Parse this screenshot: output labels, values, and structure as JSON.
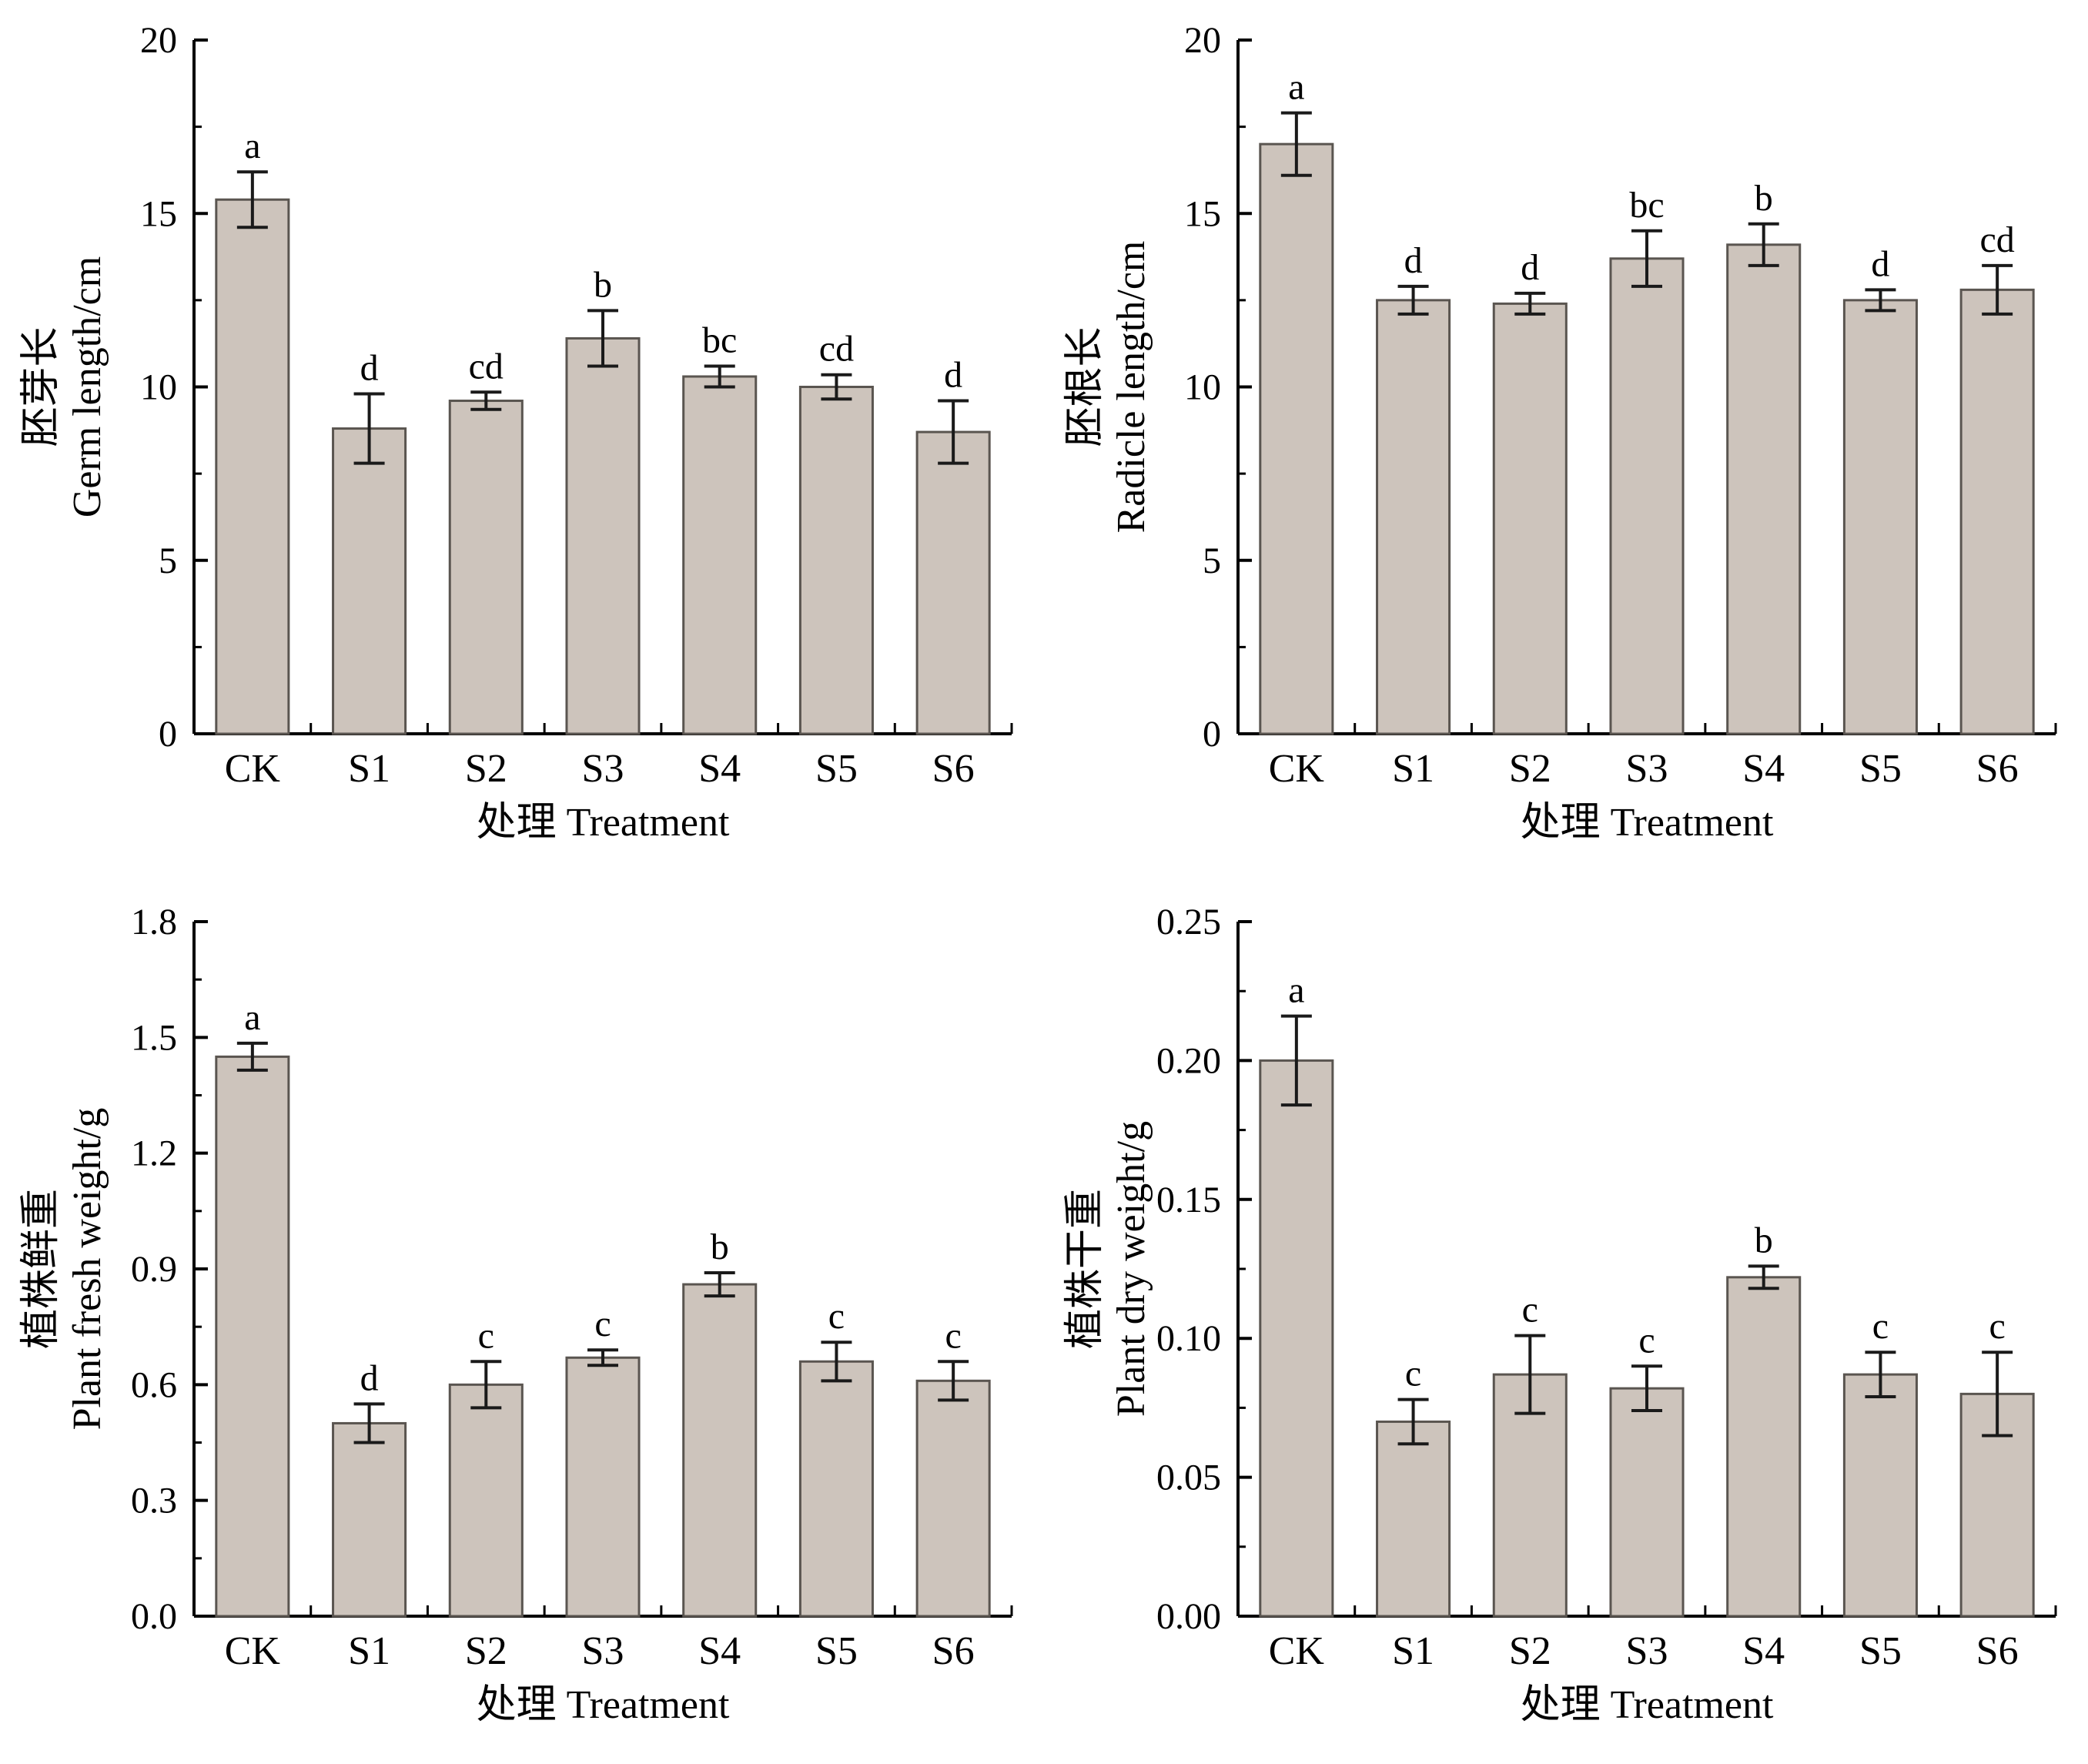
{
  "style": {
    "bar_fill": "#cdc4bc",
    "bar_stroke": "#5a5550",
    "axis_color": "#000000",
    "error_color": "#1a1a1a",
    "text_color": "#000000"
  },
  "chart_data": [
    {
      "type": "bar",
      "id": "germ-length",
      "ylabel_zh": "胚芽长",
      "ylabel_en": "Germ length/cm",
      "xlabel": "处理  Treatment",
      "categories": [
        "CK",
        "S1",
        "S2",
        "S3",
        "S4",
        "S5",
        "S6"
      ],
      "values": [
        15.4,
        8.8,
        9.6,
        11.4,
        10.3,
        10.0,
        8.7
      ],
      "errors": [
        0.8,
        1.0,
        0.25,
        0.8,
        0.3,
        0.35,
        0.9
      ],
      "letters": [
        "a",
        "d",
        "cd",
        "b",
        "bc",
        "cd",
        "d"
      ],
      "ylim": [
        0,
        20
      ],
      "yticks": [
        0,
        5,
        10,
        15,
        20
      ],
      "ytick_labels": [
        "0",
        "5",
        "10",
        "15",
        "20"
      ],
      "grid": false,
      "legend": "none"
    },
    {
      "type": "bar",
      "id": "radicle-length",
      "ylabel_zh": "胚根长",
      "ylabel_en": "Radicle length/cm",
      "xlabel": "处理  Treatment",
      "categories": [
        "CK",
        "S1",
        "S2",
        "S3",
        "S4",
        "S5",
        "S6"
      ],
      "values": [
        17.0,
        12.5,
        12.4,
        13.7,
        14.1,
        12.5,
        12.8
      ],
      "errors": [
        0.9,
        0.4,
        0.3,
        0.8,
        0.6,
        0.3,
        0.7
      ],
      "letters": [
        "a",
        "d",
        "d",
        "bc",
        "b",
        "d",
        "cd"
      ],
      "ylim": [
        0,
        20
      ],
      "yticks": [
        0,
        5,
        10,
        15,
        20
      ],
      "ytick_labels": [
        "0",
        "5",
        "10",
        "15",
        "20"
      ],
      "grid": false,
      "legend": "none"
    },
    {
      "type": "bar",
      "id": "plant-fresh-weight",
      "ylabel_zh": "植株鲜重",
      "ylabel_en": "Plant fresh weight/g",
      "xlabel": "处理  Treatment",
      "categories": [
        "CK",
        "S1",
        "S2",
        "S3",
        "S4",
        "S5",
        "S6"
      ],
      "values": [
        1.45,
        0.5,
        0.6,
        0.67,
        0.86,
        0.66,
        0.61
      ],
      "errors": [
        0.035,
        0.05,
        0.06,
        0.02,
        0.03,
        0.05,
        0.05
      ],
      "letters": [
        "a",
        "d",
        "c",
        "c",
        "b",
        "c",
        "c"
      ],
      "ylim": [
        0,
        1.8
      ],
      "yticks": [
        0,
        0.3,
        0.6,
        0.9,
        1.2,
        1.5,
        1.8
      ],
      "ytick_labels": [
        "0.0",
        "0.3",
        "0.6",
        "0.9",
        "1.2",
        "1.5",
        "1.8"
      ],
      "grid": false,
      "legend": "none"
    },
    {
      "type": "bar",
      "id": "plant-dry-weight",
      "ylabel_zh": "植株干重",
      "ylabel_en": "Plant dry weight/g",
      "xlabel": "处理  Treatment",
      "categories": [
        "CK",
        "S1",
        "S2",
        "S3",
        "S4",
        "S5",
        "S6"
      ],
      "values": [
        0.2,
        0.07,
        0.087,
        0.082,
        0.122,
        0.087,
        0.08
      ],
      "errors": [
        0.016,
        0.008,
        0.014,
        0.008,
        0.004,
        0.008,
        0.015
      ],
      "letters": [
        "a",
        "c",
        "c",
        "c",
        "b",
        "c",
        "c"
      ],
      "ylim": [
        0,
        0.25
      ],
      "yticks": [
        0,
        0.05,
        0.1,
        0.15,
        0.2,
        0.25
      ],
      "ytick_labels": [
        "0.00",
        "0.05",
        "0.10",
        "0.15",
        "0.20",
        "0.25"
      ],
      "grid": false,
      "legend": "none"
    }
  ]
}
